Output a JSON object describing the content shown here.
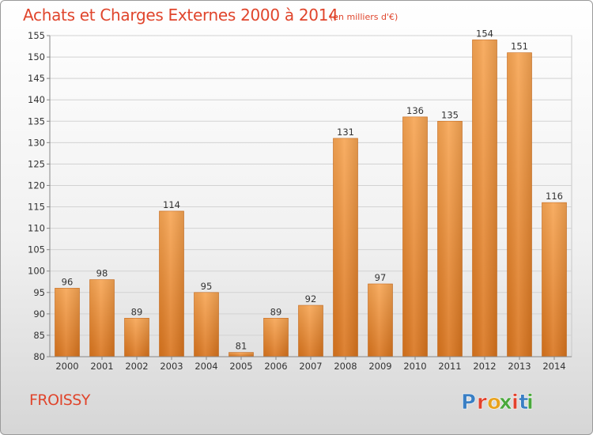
{
  "title": "Achats et Charges Externes 2000 à 2014",
  "unit": "(en milliers d'€)",
  "place": "FROISSY",
  "logo": {
    "text": "Proxiti",
    "colors": [
      "#3a7fc4",
      "#e2412b",
      "#e8a21d",
      "#4aa83c",
      "#e2412b",
      "#3a7fc4",
      "#4aa83c"
    ]
  },
  "colors": {
    "title": "#e0452c",
    "bar_top": "#f7a553",
    "bar_bottom": "#d9741d",
    "label": "#333333"
  },
  "chart_data": {
    "type": "bar",
    "categories": [
      "2000",
      "2001",
      "2002",
      "2003",
      "2004",
      "2005",
      "2006",
      "2007",
      "2008",
      "2009",
      "2010",
      "2011",
      "2012",
      "2013",
      "2014"
    ],
    "values": [
      96,
      98,
      89,
      114,
      95,
      81,
      89,
      92,
      131,
      97,
      136,
      135,
      154,
      151,
      116
    ],
    "ylim": [
      80,
      155
    ],
    "yticks": [
      80,
      85,
      90,
      95,
      100,
      105,
      110,
      115,
      120,
      125,
      130,
      135,
      140,
      145,
      150,
      155
    ],
    "grid": true,
    "xlabel": "",
    "ylabel": ""
  }
}
